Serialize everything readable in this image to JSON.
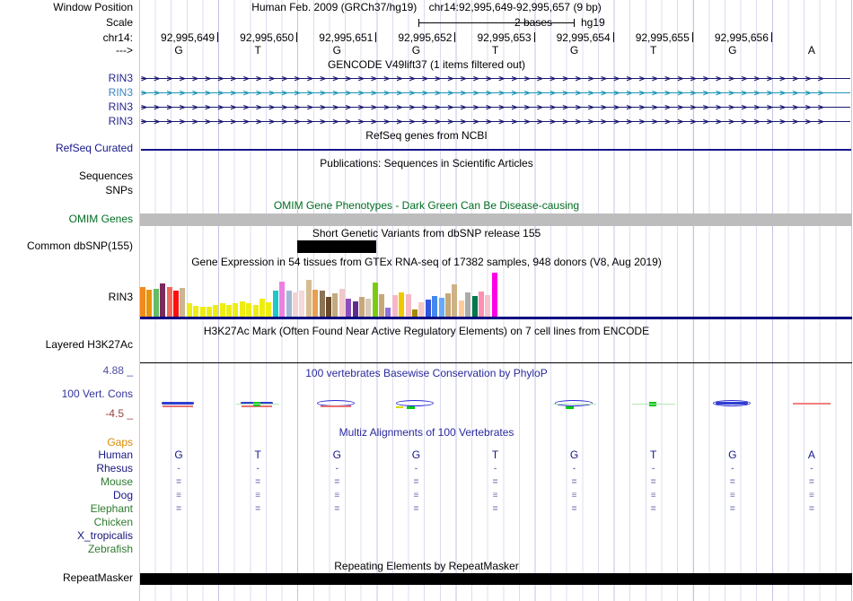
{
  "header": {
    "assembly_line": "Human Feb. 2009 (GRCh37/hg19)",
    "position_line": "chr14:92,995,649-92,995,657 (9 bp)"
  },
  "left_labels": {
    "window_position": "Window Position",
    "scale": "Scale",
    "chromosome": "chr14:",
    "strand_arrow": "--->"
  },
  "scale_bar": {
    "label": "2 bases",
    "assembly": "hg19"
  },
  "ruler": {
    "positions": [
      "92,995,649",
      "92,995,650",
      "92,995,651",
      "92,995,652",
      "92,995,653",
      "92,995,654",
      "92,995,655",
      "92,995,656"
    ],
    "bases": [
      "G",
      "T",
      "G",
      "G",
      "T",
      "G",
      "T",
      "G",
      "A"
    ]
  },
  "tracks": {
    "gencode": {
      "title": "GENCODE V49lift37 (1 items filtered out)",
      "genes": [
        {
          "label": "RIN3",
          "color": "#26268c",
          "arrow_color": "#191970"
        },
        {
          "label": "RIN3",
          "color": "#3c85c3",
          "arrow_color": "#1e96b4"
        },
        {
          "label": "RIN3",
          "color": "#26268c",
          "arrow_color": "#191970"
        },
        {
          "label": "RIN3",
          "color": "#26268c",
          "arrow_color": "#191970"
        }
      ]
    },
    "refseq": {
      "label": "RefSeq Curated",
      "label_color": "#16168b",
      "title": "RefSeq genes from NCBI",
      "line_color": "#16168b"
    },
    "publications": {
      "title": "Publications: Sequences in Scientific Articles",
      "label_sequences": "Sequences",
      "label_snps": "SNPs"
    },
    "omim": {
      "label": "OMIM Genes",
      "title": "OMIM Gene Phenotypes - Dark Green Can Be Disease-causing",
      "color": "#006e21",
      "bar_color": "#bdbdbd"
    },
    "dbsnp": {
      "label": "Common dbSNP(155)",
      "title": "Short Genetic Variants from dbSNP release 155",
      "box_color": "#000000"
    },
    "gtex": {
      "label": "RIN3",
      "title": "Gene Expression in 54 tissues from GTEx RNA-seq of 17382 samples, 948 donors (V8, Aug 2019)",
      "baseline_color": "#000080",
      "bars": [
        {
          "color": "#F08A1D",
          "h": 0.63
        },
        {
          "color": "#E8940A",
          "h": 0.58
        },
        {
          "color": "#66BB66",
          "h": 0.6
        },
        {
          "color": "#7B2A5C",
          "h": 0.72
        },
        {
          "color": "#F2685A",
          "h": 0.64
        },
        {
          "color": "#FF1010",
          "h": 0.55
        },
        {
          "color": "#CBB592",
          "h": 0.62
        },
        {
          "color": "#EDED13",
          "h": 0.28
        },
        {
          "color": "#EDED13",
          "h": 0.24
        },
        {
          "color": "#EDED13",
          "h": 0.22
        },
        {
          "color": "#EDED13",
          "h": 0.22
        },
        {
          "color": "#EDED13",
          "h": 0.25
        },
        {
          "color": "#EDED13",
          "h": 0.28
        },
        {
          "color": "#EDED13",
          "h": 0.26
        },
        {
          "color": "#EDED13",
          "h": 0.28
        },
        {
          "color": "#EDED13",
          "h": 0.32
        },
        {
          "color": "#EDED13",
          "h": 0.28
        },
        {
          "color": "#EDED13",
          "h": 0.25
        },
        {
          "color": "#EDED13",
          "h": 0.38
        },
        {
          "color": "#EDED13",
          "h": 0.3
        },
        {
          "color": "#1CC8C8",
          "h": 0.55
        },
        {
          "color": "#EE7FE0",
          "h": 0.75
        },
        {
          "color": "#9FB8D4",
          "h": 0.55
        },
        {
          "color": "#F2D2D2",
          "h": 0.52
        },
        {
          "color": "#F5D8D8",
          "h": 0.55
        },
        {
          "color": "#D6BD93",
          "h": 0.78
        },
        {
          "color": "#E8A050",
          "h": 0.58
        },
        {
          "color": "#8B7355",
          "h": 0.55
        },
        {
          "color": "#6B4A2A",
          "h": 0.42
        },
        {
          "color": "#C2AA80",
          "h": 0.5
        },
        {
          "color": "#F2C8C8",
          "h": 0.6
        },
        {
          "color": "#8A4FBE",
          "h": 0.38
        },
        {
          "color": "#5E2D8C",
          "h": 0.32
        },
        {
          "color": "#C8A878",
          "h": 0.42
        },
        {
          "color": "#D8C8B8",
          "h": 0.38
        },
        {
          "color": "#7CCB12",
          "h": 0.74
        },
        {
          "color": "#C8A878",
          "h": 0.48
        },
        {
          "color": "#9370DB",
          "h": 0.2
        },
        {
          "color": "#F5B8C8",
          "h": 0.46
        },
        {
          "color": "#F0C800",
          "h": 0.52
        },
        {
          "color": "#F7B6C2",
          "h": 0.48
        },
        {
          "color": "#A88800",
          "h": 0.15
        },
        {
          "color": "#F5C8C8",
          "h": 0.3
        },
        {
          "color": "#3355DD",
          "h": 0.36
        },
        {
          "color": "#4488EE",
          "h": 0.44
        },
        {
          "color": "#66AAFF",
          "h": 0.4
        },
        {
          "color": "#C8A878",
          "h": 0.5
        },
        {
          "color": "#CDB287",
          "h": 0.7
        },
        {
          "color": "#FFCC99",
          "h": 0.34
        },
        {
          "color": "#ABABAB",
          "h": 0.52
        },
        {
          "color": "#00784B",
          "h": 0.44
        },
        {
          "color": "#FF8FB0",
          "h": 0.54
        },
        {
          "color": "#F7C2CC",
          "h": 0.46
        },
        {
          "color": "#FF00E6",
          "h": 0.95
        }
      ]
    },
    "h3k27ac": {
      "label": "Layered H3K27Ac",
      "title": "H3K27Ac Mark (Often Found Near Active Regulatory Elements) on 7 cell lines from ENCODE"
    },
    "conservation": {
      "label": "100 Vert. Cons",
      "label_color": "#34349c",
      "title": "100 vertebrates Basewise Conservation by PhyloP",
      "title_color": "#2a2a9e",
      "max": "4.88 _",
      "max_color": "#5050a0",
      "min": "-4.5 _",
      "min_color": "#9b4040",
      "glyphs": [
        {
          "col": 0,
          "bluebar": true,
          "red": true
        },
        {
          "col": 1,
          "bluebar": true,
          "gdot": true,
          "red": true,
          "lgreen": true
        },
        {
          "col": 2,
          "lens": true,
          "red": true
        },
        {
          "col": 3,
          "lens": true,
          "gdash": true,
          "yel": true
        },
        {
          "col": 5,
          "lens": true,
          "gdash": true,
          "lgreen": true
        },
        {
          "col": 6,
          "gdot": true,
          "lgreen": true
        },
        {
          "col": 7,
          "lens": true,
          "bluebar": true
        },
        {
          "col": 8,
          "redwide": true
        }
      ]
    },
    "multiz": {
      "title": "Multiz Alignments of 100 Vertebrates",
      "title_color": "#2a2a9e",
      "mark_color": "#7a7ab8",
      "rows": [
        {
          "name": "Gaps",
          "color": "#d98a00",
          "mark": ""
        },
        {
          "name": "Human",
          "color": "#16168b",
          "mark": "bases"
        },
        {
          "name": "Rhesus",
          "color": "#16167a",
          "mark": "-"
        },
        {
          "name": "Mouse",
          "color": "#2d7a2d",
          "mark": "="
        },
        {
          "name": "Dog",
          "color": "#16168b",
          "mark": "≡"
        },
        {
          "name": "Elephant",
          "color": "#2d7a2d",
          "mark": "="
        },
        {
          "name": "Chicken",
          "color": "#2d7a2d",
          "mark": ""
        },
        {
          "name": "X_tropicalis",
          "color": "#16167a",
          "mark": ""
        },
        {
          "name": "Zebrafish",
          "color": "#2d7a2d",
          "mark": ""
        }
      ]
    },
    "repeatmasker": {
      "label": "RepeatMasker",
      "title": "Repeating Elements by RepeatMasker",
      "bar_color": "#000000"
    }
  }
}
